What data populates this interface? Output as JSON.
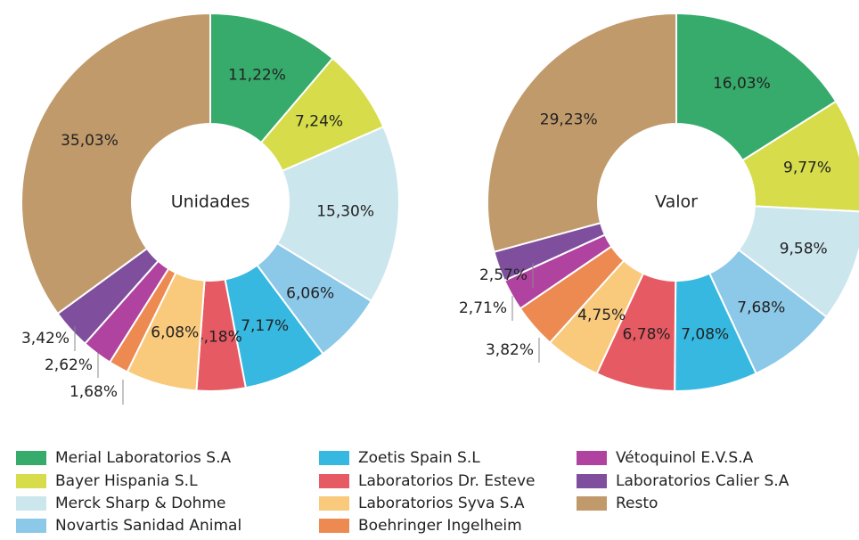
{
  "chart_data": [
    {
      "type": "donut",
      "title": "Unidades",
      "categories": [
        "Merial Laboratorios S.A",
        "Bayer Hispania S.L",
        "Merck Sharp & Dohme",
        "Novartis Sanidad Animal",
        "Zoetis Spain S.L",
        "Laboratorios Dr. Esteve",
        "Laboratorios Syva S.A",
        "Boehringer Ingelheim",
        "Vétoquinol E.V.S.A",
        "Laboratorios Calier S.A",
        "Resto"
      ],
      "values": [
        11.22,
        7.24,
        15.3,
        6.06,
        7.17,
        4.18,
        6.08,
        1.68,
        2.62,
        3.42,
        35.03
      ],
      "value_labels": [
        "11,22%",
        "7,24%",
        "15,30%",
        "6,06%",
        "7,17%",
        "4,18%",
        "6,08%",
        "1,68%",
        "2,62%",
        "3,42%",
        "35,03%"
      ],
      "colors": [
        "#36ab6b",
        "#d6dc4a",
        "#cce6ee",
        "#8cc8e8",
        "#37b8e0",
        "#e65a63",
        "#f9c97c",
        "#ec8a52",
        "#b043a0",
        "#7f4f9e",
        "#c09a6b"
      ]
    },
    {
      "type": "donut",
      "title": "Valor",
      "categories": [
        "Merial Laboratorios S.A",
        "Bayer Hispania S.L",
        "Merck Sharp & Dohme",
        "Novartis Sanidad Animal",
        "Zoetis Spain S.L",
        "Laboratorios Dr. Esteve",
        "Laboratorios Syva S.A",
        "Boehringer Ingelheim",
        "Vétoquinol E.V.S.A",
        "Laboratorios Calier S.A",
        "Resto"
      ],
      "values": [
        16.03,
        9.77,
        9.58,
        7.68,
        7.08,
        6.78,
        4.75,
        3.82,
        2.71,
        2.57,
        29.23
      ],
      "value_labels": [
        "16,03%",
        "9,77%",
        "9,58%",
        "7,68%",
        "7,08%",
        "6,78%",
        "4,75%",
        "3,82%",
        "2,71%",
        "2,57%",
        "29,23%"
      ],
      "colors": [
        "#36ab6b",
        "#d6dc4a",
        "#cce6ee",
        "#8cc8e8",
        "#37b8e0",
        "#e65a63",
        "#f9c97c",
        "#ec8a52",
        "#b043a0",
        "#7f4f9e",
        "#c09a6b"
      ]
    }
  ]
}
